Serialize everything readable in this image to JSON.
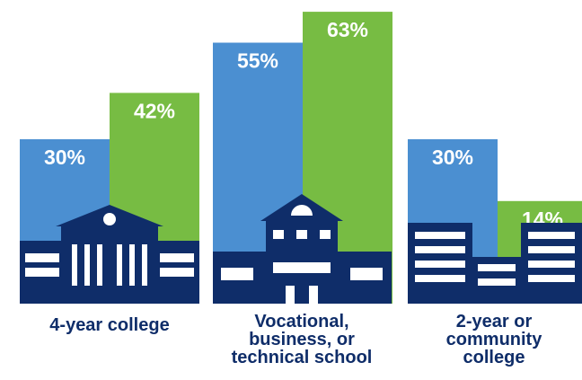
{
  "chart_data": {
    "type": "bar",
    "categories": [
      "4-year college",
      "Vocational, business, or technical school",
      "2-year or community college"
    ],
    "series": [
      {
        "color": "#4b8fd1",
        "values": [
          30,
          55,
          30
        ],
        "value_labels": [
          "30%",
          "55%",
          "30%"
        ]
      },
      {
        "color": "#77bc43",
        "values": [
          42,
          63,
          14
        ],
        "value_labels": [
          "42%",
          "63%",
          "14%"
        ]
      }
    ]
  }
}
